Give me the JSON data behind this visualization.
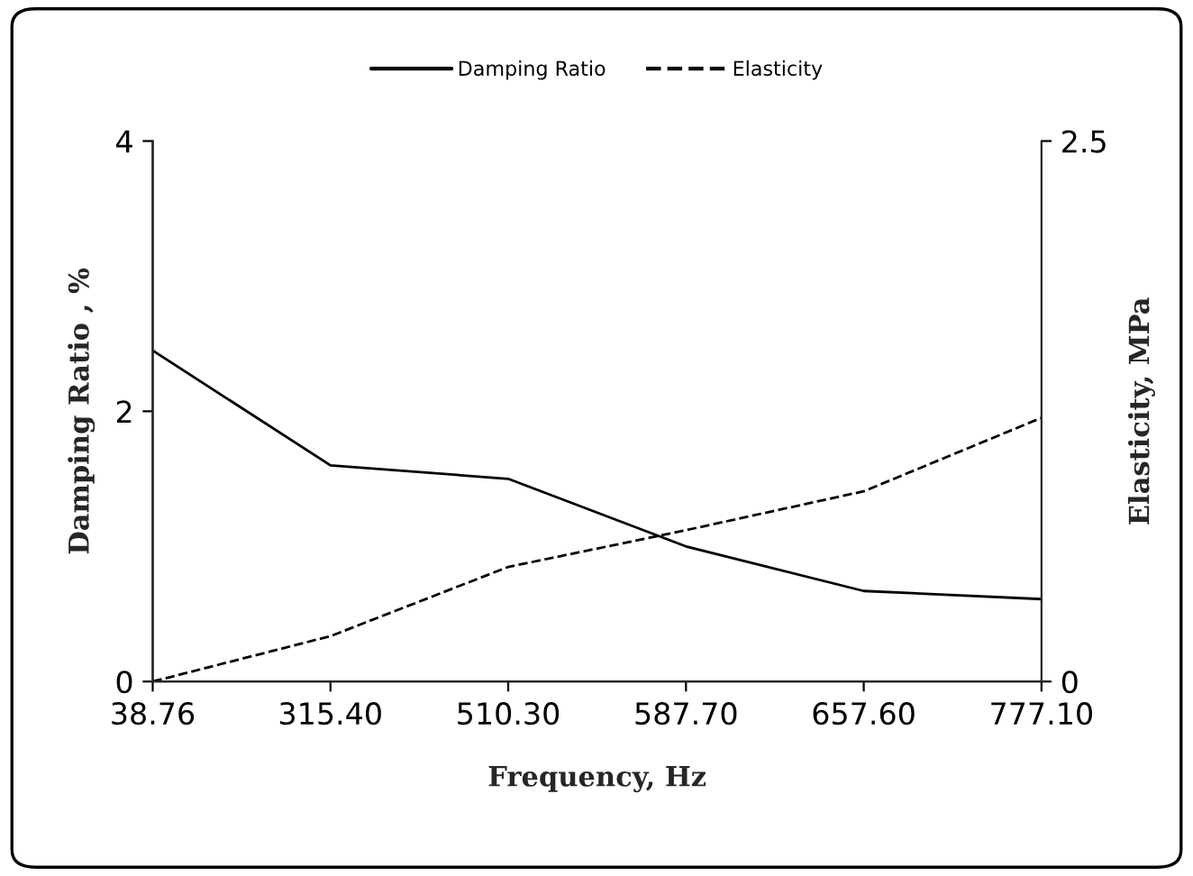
{
  "chart_data": {
    "type": "line",
    "xlabel": "Frequency, Hz",
    "ylabel": "Damping Ratio , %",
    "y2label": "Elasticity, MPa",
    "categories": [
      "38.76",
      "315.40",
      "510.30",
      "587.70",
      "657.60",
      "777.10"
    ],
    "series": [
      {
        "name": "Damping Ratio",
        "color": "#000000",
        "line_style": "solid",
        "values": [
          2.45,
          1.6,
          1.5,
          1.0,
          0.67,
          0.61
        ]
      },
      {
        "name": "Elasticity",
        "color": "#000000",
        "line_style": "dashed",
        "axis": "y2",
        "values": [
          0,
          0.21,
          0.53,
          0.7,
          0.88,
          1.22
        ]
      }
    ],
    "ylim": [
      0,
      4
    ],
    "yticks": [
      0,
      2,
      4
    ],
    "y2lim": [
      0,
      2.5
    ],
    "y2ticks": [
      0,
      2.5
    ],
    "grid": false,
    "legend": "top",
    "marker": "none"
  }
}
